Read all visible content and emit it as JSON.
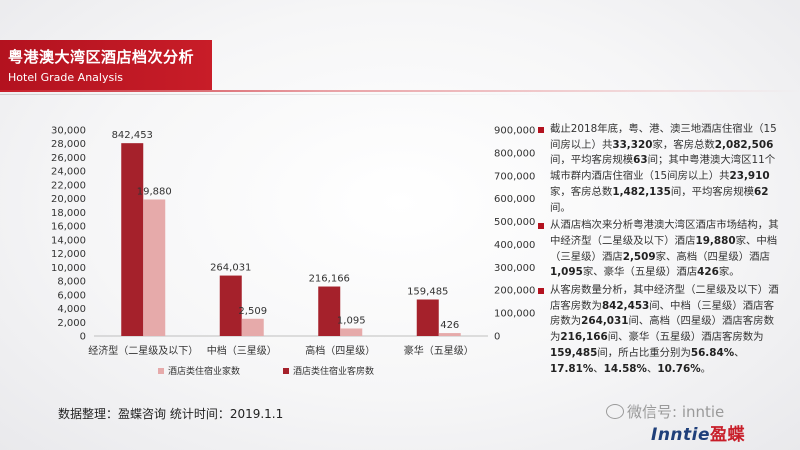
{
  "header": {
    "title": "粤港澳大湾区酒店档次分析",
    "subtitle": "Hotel Grade Analysis"
  },
  "chart_data": {
    "type": "bar",
    "categories": [
      "经济型（二星级及以下）",
      "中档（三星级）",
      "高档（四星级）",
      "豪华（五星级）"
    ],
    "series": [
      {
        "name": "酒店类住宿业客房数",
        "axis": "right",
        "color": "#a5212b",
        "values": [
          842453,
          264031,
          216166,
          159485
        ],
        "labels": [
          "842,453",
          "264,031",
          "216,166",
          "159,485"
        ]
      },
      {
        "name": "酒店类住宿业家数",
        "axis": "left",
        "color": "#e6aaaa",
        "values": [
          19880,
          2509,
          1095,
          426
        ],
        "labels": [
          "19,880",
          "2,509",
          "1,095",
          "426"
        ]
      }
    ],
    "left_axis": {
      "min": 0,
      "max": 30000,
      "step": 2000,
      "ticks": [
        "0",
        "2,000",
        "4,000",
        "6,000",
        "8,000",
        "10,000",
        "12,000",
        "14,000",
        "16,000",
        "18,000",
        "20,000",
        "22,000",
        "24,000",
        "26,000",
        "28,000",
        "30,000"
      ]
    },
    "right_axis": {
      "min": 0,
      "max": 900000,
      "step": 100000,
      "ticks": [
        "0",
        "100,000",
        "200,000",
        "300,000",
        "400,000",
        "500,000",
        "600,000",
        "700,000",
        "800,000",
        "900,000"
      ]
    },
    "legend_position": "bottom"
  },
  "notes": [
    [
      {
        "t": "截止2018年底，粤、港、澳三地酒店住宿业（15间房以上）共"
      },
      {
        "t": "33,320",
        "b": true
      },
      {
        "t": "家，客房总数"
      },
      {
        "t": "2,082,506",
        "b": true
      },
      {
        "t": "间，平均客房规模"
      },
      {
        "t": "63",
        "b": true
      },
      {
        "t": "间；其中粤港澳大湾区11个城市群内酒店住宿业（15间房以上）共"
      },
      {
        "t": "23,910",
        "b": true
      },
      {
        "t": "家，客房总数"
      },
      {
        "t": "1,482,135",
        "b": true
      },
      {
        "t": "间，平均客房规模"
      },
      {
        "t": "62",
        "b": true
      },
      {
        "t": "间。"
      }
    ],
    [
      {
        "t": "从酒店档次来分析粤港澳大湾区酒店市场结构，其中经济型（二星级及以下）酒店"
      },
      {
        "t": "19,880",
        "b": true
      },
      {
        "t": "家、中档（三星级）酒店"
      },
      {
        "t": "2,509",
        "b": true
      },
      {
        "t": "家、高档（四星级）酒店"
      },
      {
        "t": "1,095",
        "b": true
      },
      {
        "t": "家、豪华（五星级）酒店"
      },
      {
        "t": "426",
        "b": true
      },
      {
        "t": "家。"
      }
    ],
    [
      {
        "t": "从客房数量分析，其中经济型（二星级及以下）酒店客房数为"
      },
      {
        "t": "842,453",
        "b": true
      },
      {
        "t": "间、中档（三星级）酒店客房数为"
      },
      {
        "t": "264,031",
        "b": true
      },
      {
        "t": "间、高档（四星级）酒店客房数为"
      },
      {
        "t": "216,166",
        "b": true
      },
      {
        "t": "间、豪华（五星级）酒店客房数为"
      },
      {
        "t": "159,485",
        "b": true
      },
      {
        "t": "间，所占比重分别为"
      },
      {
        "t": "56.84%",
        "b": true
      },
      {
        "t": "、"
      },
      {
        "t": "17.81%",
        "b": true
      },
      {
        "t": "、"
      },
      {
        "t": "14.58%",
        "b": true
      },
      {
        "t": "、"
      },
      {
        "t": "10.76%",
        "b": true
      },
      {
        "t": "。"
      }
    ]
  ],
  "footer": {
    "source": "数据整理：盈蝶咨询   统计时间：2019.1.1",
    "wechat": "微信号: inntie",
    "logo_en": "Inntie",
    "logo_cn": "盈蝶"
  }
}
